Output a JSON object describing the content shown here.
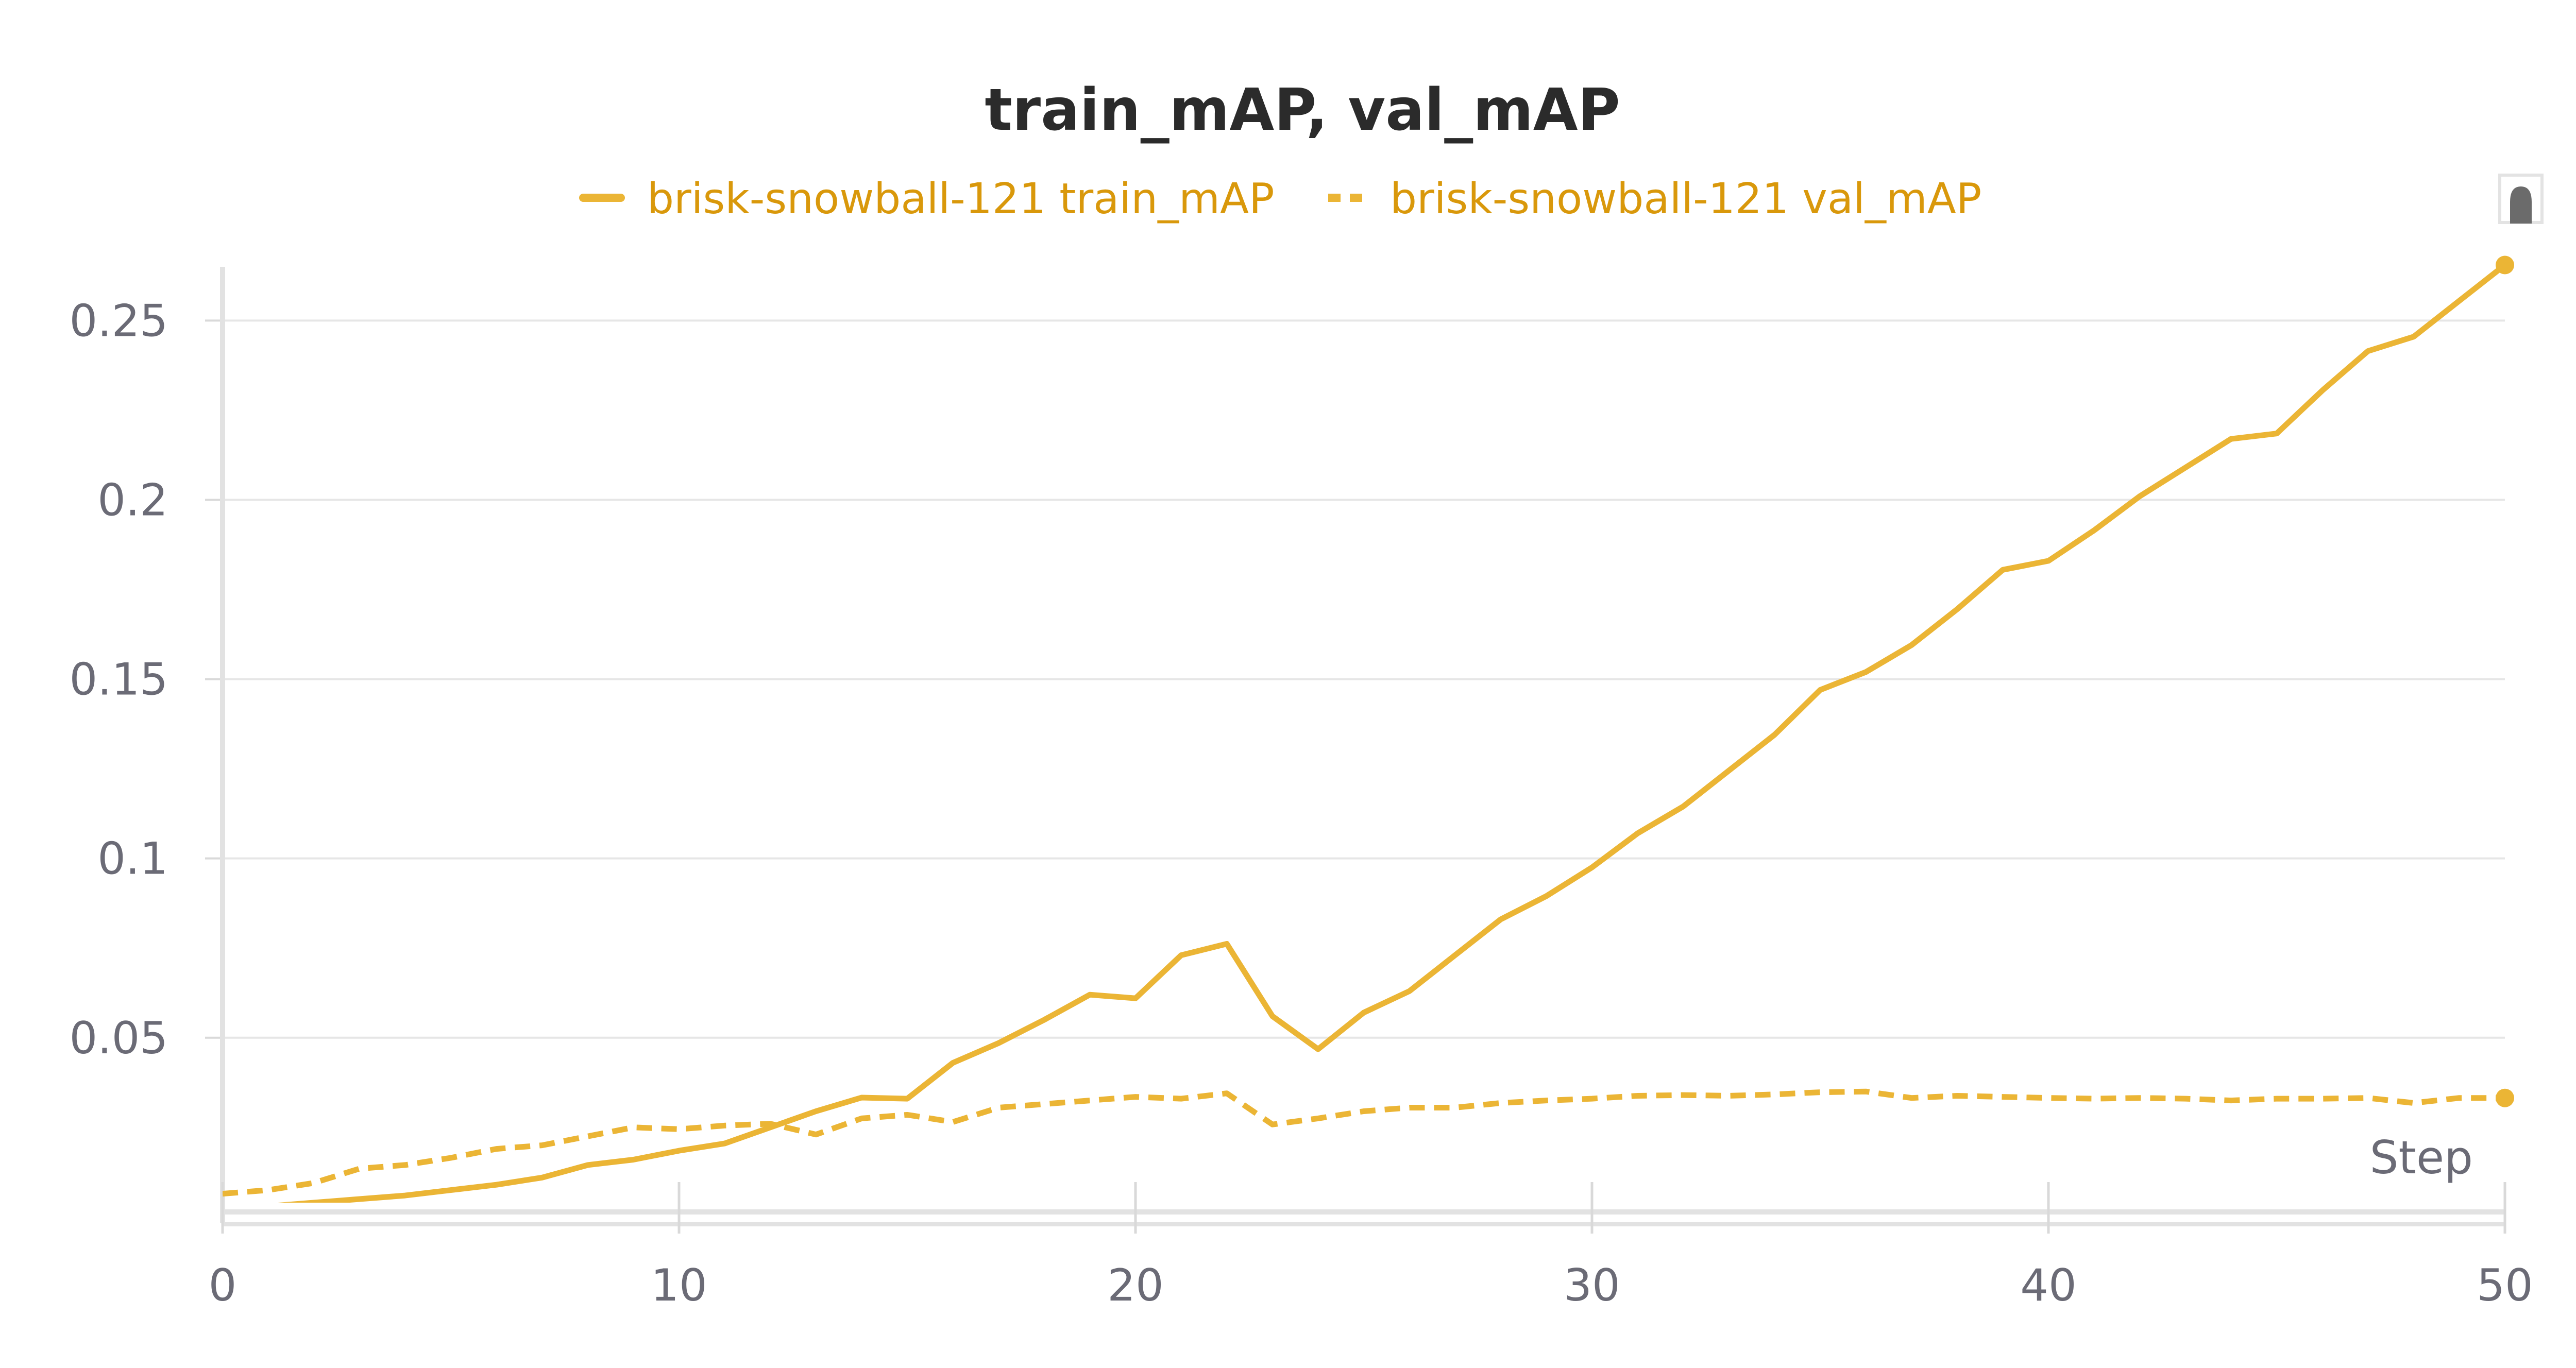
{
  "chart_data": {
    "type": "line",
    "title": "train_mAP, val_mAP",
    "xlabel": "Step",
    "ylabel": "",
    "xlim": [
      0,
      50
    ],
    "ylim": [
      0.004,
      0.265
    ],
    "x_ticks": [
      0,
      10,
      20,
      30,
      40,
      50
    ],
    "x_tick_labels": [
      "0",
      "10",
      "20",
      "30",
      "40",
      "50"
    ],
    "y_ticks": [
      0.05,
      0.1,
      0.15,
      0.2,
      0.25
    ],
    "y_tick_labels": [
      "0.05",
      "0.1",
      "0.15",
      "0.2",
      "0.25"
    ],
    "grid": true,
    "legend_position": "top-center",
    "series": [
      {
        "name": "brisk-snowball-121 train_mAP",
        "style": "solid",
        "color": "#ebb535",
        "x": [
          0,
          1,
          2,
          3,
          4,
          5,
          6,
          7,
          8,
          9,
          10,
          11,
          12,
          13,
          14,
          15,
          16,
          17,
          18,
          19,
          20,
          21,
          22,
          23,
          24,
          25,
          26,
          27,
          28,
          29,
          30,
          31,
          32,
          33,
          34,
          35,
          36,
          37,
          38,
          39,
          40,
          41,
          42,
          43,
          44,
          45,
          46,
          47,
          48,
          49,
          50
        ],
        "y": [
          0.002,
          0.003,
          0.004,
          0.005,
          0.006,
          0.0075,
          0.009,
          0.011,
          0.0145,
          0.016,
          0.0185,
          0.0205,
          0.025,
          0.0295,
          0.0333,
          0.033,
          0.043,
          0.0485,
          0.055,
          0.062,
          0.061,
          0.073,
          0.0762,
          0.056,
          0.0468,
          0.057,
          0.063,
          0.073,
          0.083,
          0.0895,
          0.0975,
          0.107,
          0.1145,
          0.1245,
          0.1345,
          0.147,
          0.152,
          0.1595,
          0.1695,
          0.1805,
          0.183,
          0.1915,
          0.201,
          0.209,
          0.217,
          0.2185,
          0.2305,
          0.2415,
          0.2455,
          0.2555,
          0.2655
        ]
      },
      {
        "name": "brisk-snowball-121 val_mAP",
        "style": "dashed",
        "color": "#ebb535",
        "x": [
          0,
          1,
          2,
          3,
          4,
          5,
          6,
          7,
          8,
          9,
          10,
          11,
          12,
          13,
          14,
          15,
          16,
          17,
          18,
          19,
          20,
          21,
          22,
          23,
          24,
          25,
          26,
          27,
          28,
          29,
          30,
          31,
          32,
          33,
          34,
          35,
          36,
          37,
          38,
          39,
          40,
          41,
          42,
          43,
          44,
          45,
          46,
          47,
          48,
          49,
          50
        ],
        "y": [
          0.0065,
          0.0075,
          0.0095,
          0.0135,
          0.0145,
          0.0165,
          0.019,
          0.02,
          0.0225,
          0.025,
          0.0245,
          0.0255,
          0.026,
          0.023,
          0.0275,
          0.0285,
          0.0265,
          0.0305,
          0.0315,
          0.0325,
          0.0335,
          0.033,
          0.0345,
          0.0258,
          0.0275,
          0.0295,
          0.0305,
          0.0305,
          0.0318,
          0.0325,
          0.033,
          0.0338,
          0.034,
          0.0338,
          0.0342,
          0.0348,
          0.035,
          0.0332,
          0.0338,
          0.0335,
          0.0332,
          0.033,
          0.0332,
          0.033,
          0.0325,
          0.033,
          0.033,
          0.0332,
          0.0318,
          0.0332,
          0.0332
        ]
      }
    ]
  }
}
